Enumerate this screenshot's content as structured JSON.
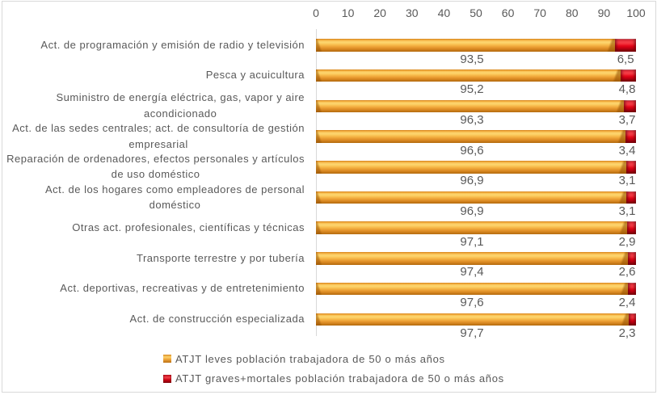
{
  "chart_data": {
    "type": "bar",
    "subtype": "horizontal-stacked",
    "title": "",
    "x_axis": {
      "min": 0,
      "max": 100,
      "step": 10,
      "tick_labels": [
        "0",
        "10",
        "20",
        "30",
        "40",
        "50",
        "60",
        "70",
        "80",
        "90",
        "100"
      ],
      "position": "top"
    },
    "grid": "off",
    "categories": [
      {
        "lines": [
          "Act. de programación y emisión de radio y televisión"
        ]
      },
      {
        "lines": [
          "Pesca y acuicultura"
        ]
      },
      {
        "lines": [
          "Suministro de energía eléctrica, gas, vapor y aire",
          "acondicionado"
        ]
      },
      {
        "lines": [
          "Act. de las sedes centrales; act. de consultoría de gestión",
          "empresarial"
        ]
      },
      {
        "lines": [
          "Reparación de ordenadores, efectos personales y artículos",
          "de uso doméstico"
        ]
      },
      {
        "lines": [
          "Act. de los hogares como empleadores de personal",
          "doméstico"
        ]
      },
      {
        "lines": [
          "Otras act. profesionales, científicas y técnicas"
        ]
      },
      {
        "lines": [
          "Transporte terrestre y por tubería"
        ]
      },
      {
        "lines": [
          "Act. deportivas, recreativas y de entretenimiento"
        ]
      },
      {
        "lines": [
          "Act. de construcción especializada"
        ]
      }
    ],
    "series": [
      {
        "name": "ATJT leves población trabajadora de 50 o más años",
        "color": "#F0A43A",
        "values": [
          93.5,
          95.2,
          96.3,
          96.6,
          96.9,
          96.9,
          97.1,
          97.4,
          97.6,
          97.7
        ],
        "data_labels": [
          "93,5",
          "95,2",
          "96,3",
          "96,6",
          "96,9",
          "96,9",
          "97,1",
          "97,4",
          "97,6",
          "97,7"
        ]
      },
      {
        "name": "ATJT graves+mortales población trabajadora de 50 o más años",
        "color": "#DC1020",
        "values": [
          6.5,
          4.8,
          3.7,
          3.4,
          3.1,
          3.1,
          2.9,
          2.6,
          2.4,
          2.3
        ],
        "data_labels": [
          "6,5",
          "4,8",
          "3,7",
          "3,4",
          "3,1",
          "3,1",
          "2,9",
          "2,6",
          "2,4",
          "2,3"
        ]
      }
    ],
    "legend": {
      "position": "bottom",
      "items": [
        {
          "label": "ATJT leves población trabajadora de 50 o más años",
          "color_key": "orange"
        },
        {
          "label": "ATJT graves+mortales población trabajadora de 50 o más años",
          "color_key": "red"
        }
      ]
    },
    "colors": {
      "text": "#595959",
      "axis_line": "#D9D9D9",
      "chart_border": "#D9D9D9"
    }
  }
}
